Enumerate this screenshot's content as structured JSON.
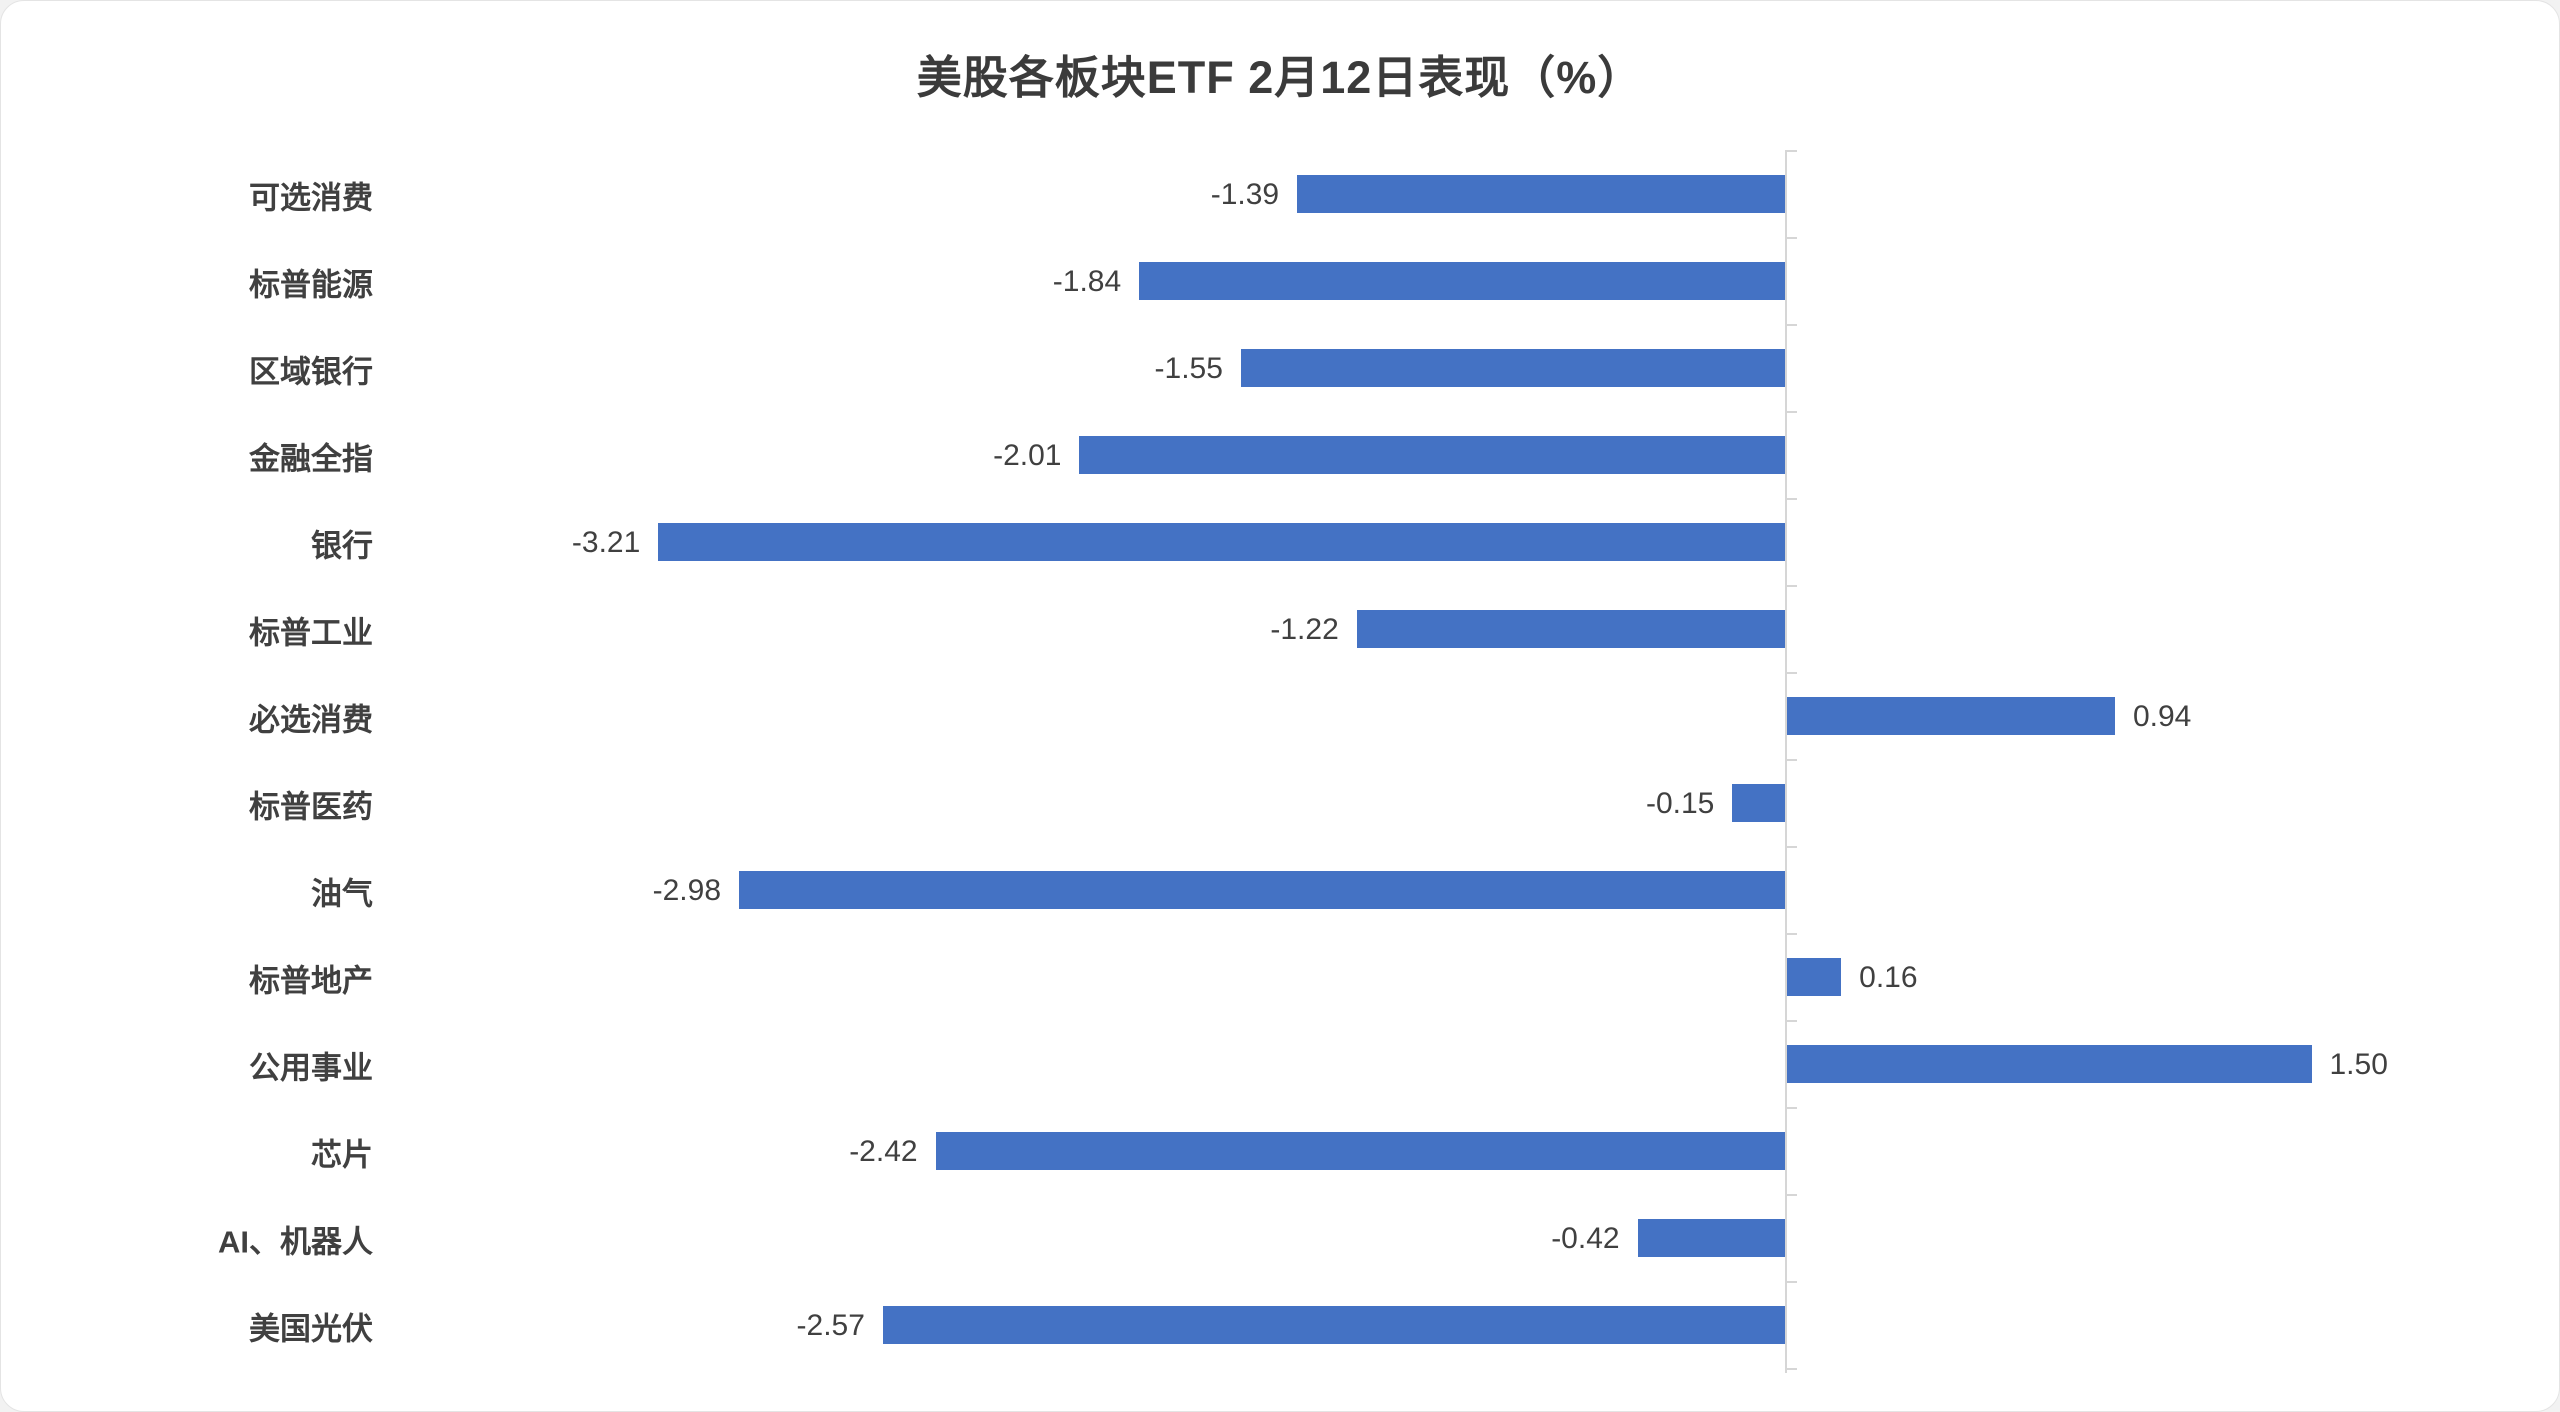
{
  "chart_data": {
    "type": "bar",
    "orientation": "horizontal",
    "title": "美股各板块ETF 2月12日表现（%）",
    "categories": [
      "可选消费",
      "标普能源",
      "区域银行",
      "金融全指",
      "银行",
      "标普工业",
      "必选消费",
      "标普医药",
      "油气",
      "标普地产",
      "公用事业",
      "芯片",
      "AI、机器人",
      "美国光伏"
    ],
    "values": [
      -1.39,
      -1.84,
      -1.55,
      -2.01,
      -3.21,
      -1.22,
      0.94,
      -0.15,
      -2.98,
      0.16,
      1.5,
      -2.42,
      -0.42,
      -2.57
    ],
    "value_labels": [
      "-1.39",
      "-1.84",
      "-1.55",
      "-2.01",
      "-3.21",
      "-1.22",
      "0.94",
      "-0.15",
      "-2.98",
      "0.16",
      "1.50",
      "-2.42",
      "-0.42",
      "-2.57"
    ],
    "xlim": [
      -4.0,
      2.2
    ],
    "bar_color": "#4472C4",
    "axis_color": "#d6d6d6",
    "value_axis_visible": false,
    "grid": false,
    "legend": false,
    "value_format": "0.00"
  }
}
